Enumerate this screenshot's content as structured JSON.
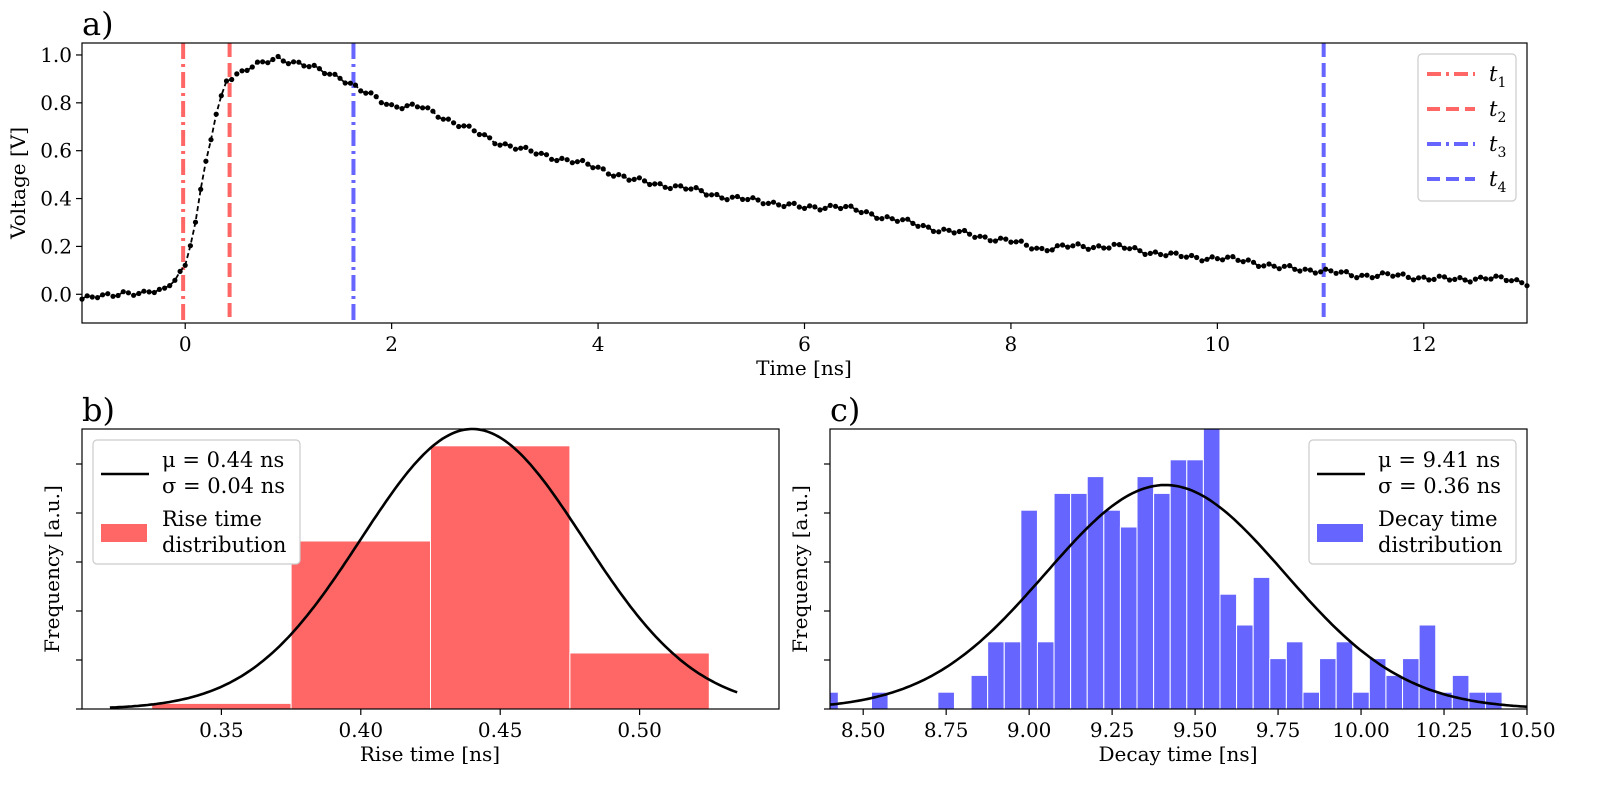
{
  "chart_data": [
    {
      "type": "line",
      "panel_label": "a)",
      "xlabel": "Time [ns]",
      "ylabel": "Voltage [V]",
      "xlim": [
        -1,
        13
      ],
      "ylim": [
        -0.12,
        1.05
      ],
      "xticks": [
        0,
        2,
        4,
        6,
        8,
        10,
        12
      ],
      "yticks": [
        0.0,
        0.2,
        0.4,
        0.6,
        0.8,
        1.0
      ],
      "xtick_labels": [
        "0",
        "2",
        "4",
        "6",
        "8",
        "10",
        "12"
      ],
      "ytick_labels": [
        "0.0",
        "0.2",
        "0.4",
        "0.6",
        "0.8",
        "1.0"
      ],
      "grid": false,
      "legend_position": "top-right",
      "waveform": {
        "x": [
          -1.0,
          -0.8,
          -0.6,
          -0.4,
          -0.2,
          0.0,
          0.1,
          0.2,
          0.3,
          0.4,
          0.6,
          0.9,
          1.2,
          1.5,
          1.7,
          2.0,
          2.3,
          2.6,
          3.0,
          3.3,
          3.6,
          4.0,
          4.3,
          4.6,
          5.0,
          5.3,
          5.6,
          6.0,
          6.3,
          6.6,
          7.0,
          7.3,
          7.6,
          8.0,
          8.3,
          8.6,
          9.0,
          9.3,
          9.6,
          10.0,
          10.3,
          10.6,
          11.0,
          11.3,
          11.6,
          12.0,
          12.3,
          12.6,
          13.0
        ],
        "y": [
          -0.02,
          -0.01,
          0.01,
          0.0,
          0.02,
          0.12,
          0.3,
          0.55,
          0.75,
          0.9,
          0.94,
          0.99,
          0.95,
          0.91,
          0.85,
          0.79,
          0.78,
          0.72,
          0.64,
          0.6,
          0.57,
          0.53,
          0.48,
          0.46,
          0.43,
          0.4,
          0.39,
          0.36,
          0.37,
          0.34,
          0.3,
          0.27,
          0.25,
          0.22,
          0.19,
          0.2,
          0.2,
          0.18,
          0.16,
          0.15,
          0.14,
          0.11,
          0.1,
          0.08,
          0.08,
          0.07,
          0.06,
          0.07,
          0.05
        ]
      },
      "vlines": [
        {
          "name": "t1",
          "label": "t",
          "sub": "1",
          "x": -0.02,
          "color": "#ff6666",
          "style": "dashdot"
        },
        {
          "name": "t2",
          "label": "t",
          "sub": "2",
          "x": 0.43,
          "color": "#ff6666",
          "style": "dashed"
        },
        {
          "name": "t3",
          "label": "t",
          "sub": "3",
          "x": 1.63,
          "color": "#6666ff",
          "style": "dashdot"
        },
        {
          "name": "t4",
          "label": "t",
          "sub": "4",
          "x": 11.03,
          "color": "#6666ff",
          "style": "dashed"
        }
      ]
    },
    {
      "type": "bar",
      "panel_label": "b)",
      "xlabel": "Rise time [ns]",
      "ylabel": "Frequency [a.u.]",
      "xlim": [
        0.3,
        0.55
      ],
      "ylim": [
        0,
        1.0
      ],
      "xticks": [
        0.35,
        0.4,
        0.45,
        0.5
      ],
      "xtick_labels": [
        "0.35",
        "0.40",
        "0.45",
        "0.50"
      ],
      "bar_color": "#ff6666",
      "bins": [
        {
          "start": 0.325,
          "end": 0.375,
          "value": 0.02
        },
        {
          "start": 0.375,
          "end": 0.425,
          "value": 0.6
        },
        {
          "start": 0.425,
          "end": 0.475,
          "value": 0.94
        },
        {
          "start": 0.475,
          "end": 0.525,
          "value": 0.2
        }
      ],
      "fit": {
        "mu": 0.44,
        "sigma": 0.04,
        "peak": 1.0,
        "x_from": 0.31,
        "x_to": 0.535
      },
      "legend_position": "top-left",
      "legend": {
        "fit_lines": [
          "μ = 0.44 ns",
          "σ = 0.04 ns"
        ],
        "hist_lines": [
          "Rise time",
          "distribution"
        ]
      }
    },
    {
      "type": "bar",
      "panel_label": "c)",
      "xlabel": "Decay time [ns]",
      "ylabel": "Frequency [a.u.]",
      "xlim": [
        8.4,
        10.5
      ],
      "ylim": [
        0,
        1.0
      ],
      "xticks": [
        8.5,
        8.75,
        9.0,
        9.25,
        9.5,
        9.75,
        10.0,
        10.25,
        10.5
      ],
      "xtick_labels": [
        "8.50",
        "8.75",
        "9.00",
        "9.25",
        "9.50",
        "9.75",
        "10.00",
        "10.25",
        "10.50"
      ],
      "bar_color": "#6666ff",
      "bin_start": 8.375,
      "bin_width": 0.05,
      "bin_values": [
        0.06,
        0,
        0,
        0.06,
        0,
        0,
        0,
        0.06,
        0,
        0.12,
        0.24,
        0.24,
        0.71,
        0.24,
        0.77,
        0.77,
        0.83,
        0.71,
        0.65,
        0.83,
        0.77,
        0.89,
        0.89,
        1.0,
        0.41,
        0.3,
        0.47,
        0.18,
        0.24,
        0.06,
        0.18,
        0.24,
        0.06,
        0.18,
        0.12,
        0.18,
        0.3,
        0.06,
        0.12,
        0.06,
        0.06
      ],
      "fit": {
        "mu": 9.41,
        "sigma": 0.36,
        "peak": 0.8,
        "x_from": 8.4,
        "x_to": 10.5
      },
      "legend_position": "top-right",
      "legend": {
        "fit_lines": [
          "μ = 9.41 ns",
          "σ = 0.36 ns"
        ],
        "hist_lines": [
          "Decay time",
          "distribution"
        ]
      }
    }
  ]
}
